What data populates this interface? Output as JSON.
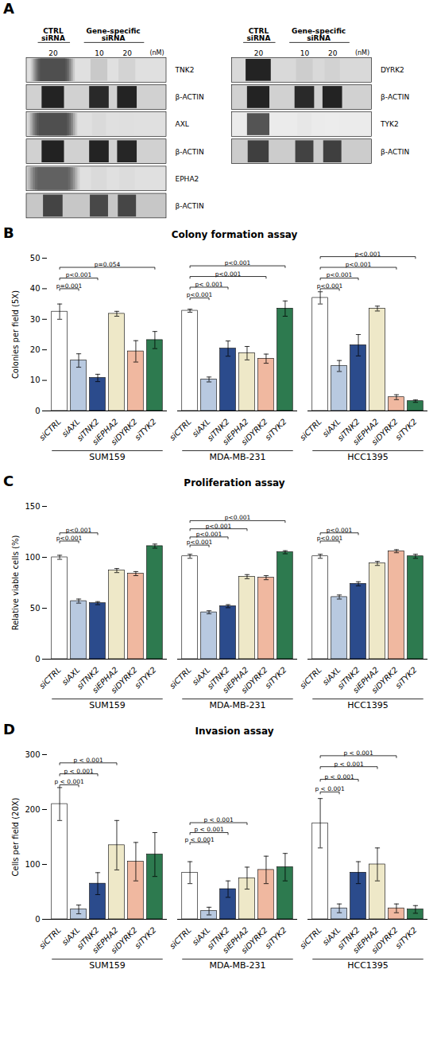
{
  "chart_data": [
    {
      "type": "western_blot",
      "panel": "A",
      "lane_groups": [
        {
          "name": "CTRL\nsiRNA",
          "lanes": 1
        },
        {
          "name": "Gene-specific\nsiRNA",
          "lanes": 2
        }
      ],
      "concentrations": [
        20,
        10,
        20
      ],
      "concentration_unit": "(nM)",
      "membranes": [
        {
          "blots": [
            {
              "label": "TNK2",
              "background": 0.88,
              "bands": [
                {
                  "width": 0.18,
                  "gray": 0.05,
                  "blur": true
                },
                {
                  "width": 0.12,
                  "gray": 0.78,
                  "blur": false
                },
                {
                  "width": 0.12,
                  "gray": 0.82,
                  "blur": false
                }
              ]
            },
            {
              "label": "β-ACTIN",
              "background": 0.82,
              "bands": [
                {
                  "width": 0.16,
                  "gray": 0.08,
                  "blur": false
                },
                {
                  "width": 0.14,
                  "gray": 0.1,
                  "blur": false
                },
                {
                  "width": 0.14,
                  "gray": 0.08,
                  "blur": false
                }
              ]
            },
            {
              "label": "AXL",
              "background": 0.88,
              "bands": [
                {
                  "width": 0.2,
                  "gray": 0.05,
                  "blur": true
                },
                {
                  "width": 0.1,
                  "gray": 0.85,
                  "blur": false
                },
                {
                  "width": 0.1,
                  "gray": 0.87,
                  "blur": false
                }
              ]
            },
            {
              "label": "β-ACTIN",
              "background": 0.82,
              "bands": [
                {
                  "width": 0.16,
                  "gray": 0.07,
                  "blur": false
                },
                {
                  "width": 0.14,
                  "gray": 0.08,
                  "blur": false
                },
                {
                  "width": 0.14,
                  "gray": 0.09,
                  "blur": false
                }
              ]
            },
            {
              "label": "EPHA2",
              "background": 0.88,
              "bands": [
                {
                  "width": 0.22,
                  "gray": 0.12,
                  "blur": true
                },
                {
                  "width": 0.11,
                  "gray": 0.85,
                  "blur": false
                },
                {
                  "width": 0.11,
                  "gray": 0.86,
                  "blur": false
                }
              ]
            },
            {
              "label": "β-ACTIN",
              "background": 0.78,
              "bands": [
                {
                  "width": 0.14,
                  "gray": 0.22,
                  "blur": false
                },
                {
                  "width": 0.13,
                  "gray": 0.24,
                  "blur": false
                },
                {
                  "width": 0.13,
                  "gray": 0.23,
                  "blur": false
                }
              ]
            }
          ]
        },
        {
          "blots": [
            {
              "label": "DYRK2",
              "background": 0.85,
              "bands": [
                {
                  "width": 0.18,
                  "gray": 0.08,
                  "blur": false
                },
                {
                  "width": 0.12,
                  "gray": 0.8,
                  "blur": false
                },
                {
                  "width": 0.11,
                  "gray": 0.82,
                  "blur": false
                }
              ]
            },
            {
              "label": "β-ACTIN",
              "background": 0.82,
              "bands": [
                {
                  "width": 0.16,
                  "gray": 0.08,
                  "blur": false
                },
                {
                  "width": 0.14,
                  "gray": 0.1,
                  "blur": false
                },
                {
                  "width": 0.14,
                  "gray": 0.08,
                  "blur": false
                }
              ]
            },
            {
              "label": "TYK2",
              "background": 0.92,
              "bands": [
                {
                  "width": 0.16,
                  "gray": 0.28,
                  "blur": false
                },
                {
                  "width": 0.1,
                  "gray": 0.9,
                  "blur": false
                },
                {
                  "width": 0.1,
                  "gray": 0.92,
                  "blur": false
                }
              ]
            },
            {
              "label": "β-ACTIN",
              "background": 0.8,
              "bands": [
                {
                  "width": 0.15,
                  "gray": 0.2,
                  "blur": false
                },
                {
                  "width": 0.13,
                  "gray": 0.21,
                  "blur": false
                },
                {
                  "width": 0.13,
                  "gray": 0.2,
                  "blur": false
                }
              ]
            }
          ]
        }
      ]
    },
    {
      "type": "bar",
      "panel": "B",
      "title": "Colony formation assay",
      "ylabel": "Colonies per field (5X)",
      "ylim": [
        0,
        50
      ],
      "yticks": [
        0,
        10,
        20,
        30,
        40,
        50
      ],
      "categories": [
        "siCTRL",
        "siAXL",
        "siTNK2",
        "siEPHA2",
        "siDYRK2",
        "siTYK2"
      ],
      "colors": [
        "white",
        "#b8c9e0",
        "#2b4b8c",
        "#eee8c8",
        "#f0b8a0",
        "#2d7a4f"
      ],
      "groups": [
        {
          "name": "SUM159",
          "values": [
            32.5,
            16.5,
            10.8,
            31.8,
            19.5,
            23.2
          ],
          "errors": [
            2.5,
            2.2,
            1.2,
            0.8,
            3.5,
            2.8
          ],
          "significance": [
            {
              "from": "siCTRL",
              "to": "siAXL",
              "label": "p=0.001",
              "y": 40.0
            },
            {
              "from": "siCTRL",
              "to": "siTNK2",
              "label": "p<0.001",
              "y": 43.5
            },
            {
              "from": "siCTRL",
              "to": "siTYK2",
              "label": "p=0.054",
              "y": 47.0
            }
          ]
        },
        {
          "name": "MDA-MB-231",
          "values": [
            32.8,
            10.3,
            20.4,
            18.9,
            17.1,
            33.5
          ],
          "errors": [
            0.5,
            0.8,
            2.5,
            2.2,
            1.5,
            2.5
          ],
          "significance": [
            {
              "from": "siCTRL",
              "to": "siAXL",
              "label": "p<0.001",
              "y": 37.0
            },
            {
              "from": "siCTRL",
              "to": "siTNK2",
              "label": "p< 0.001",
              "y": 40.5
            },
            {
              "from": "siCTRL",
              "to": "siDYRK2",
              "label": "p<0.001",
              "y": 44.0
            },
            {
              "from": "siCTRL",
              "to": "siTYK2",
              "label": "p<0.001",
              "y": 47.5
            }
          ]
        },
        {
          "name": "HCC1395",
          "values": [
            37.0,
            14.7,
            21.5,
            33.5,
            4.5,
            3.2
          ],
          "errors": [
            2.0,
            1.8,
            3.5,
            0.8,
            0.8,
            0.4
          ],
          "significance": [
            {
              "from": "siCTRL",
              "to": "siAXL",
              "label": "p<0.001",
              "y": 40.0
            },
            {
              "from": "siCTRL",
              "to": "siTNK2",
              "label": "p<0.001",
              "y": 43.5
            },
            {
              "from": "siCTRL",
              "to": "siDYRK2",
              "label": "p<0.001",
              "y": 47.0
            },
            {
              "from": "siCTRL",
              "to": "siTYK2",
              "label": "p<0.001",
              "y": 50.5
            }
          ]
        }
      ]
    },
    {
      "type": "bar",
      "panel": "C",
      "title": "Proliferation assay",
      "ylabel": "Relative viable cells (%)",
      "ylim": [
        0,
        150
      ],
      "yticks": [
        0,
        50,
        100,
        150
      ],
      "categories": [
        "siCTRL",
        "siAXL",
        "siTNK2",
        "siEPHA2",
        "siDYRK2",
        "siTYK2"
      ],
      "colors": [
        "white",
        "#b8c9e0",
        "#2b4b8c",
        "#eee8c8",
        "#f0b8a0",
        "#2d7a4f"
      ],
      "groups": [
        {
          "name": "SUM159",
          "values": [
            100,
            57,
            55,
            87,
            84,
            111
          ],
          "errors": [
            2.0,
            2.0,
            1.5,
            2.0,
            2.0,
            2.0
          ],
          "significance": [
            {
              "from": "siCTRL",
              "to": "siAXL",
              "label": "p<0.001",
              "y": 116
            },
            {
              "from": "siCTRL",
              "to": "siTNK2",
              "label": "p<0.001",
              "y": 124
            }
          ]
        },
        {
          "name": "MDA-MB-231",
          "values": [
            101,
            46,
            52,
            81,
            80,
            105
          ],
          "errors": [
            2.0,
            1.5,
            1.5,
            2.0,
            2.0,
            1.5
          ],
          "significance": [
            {
              "from": "siCTRL",
              "to": "siAXL",
              "label": "p<0.001",
              "y": 112
            },
            {
              "from": "siCTRL",
              "to": "siTNK2",
              "label": "p<0.001",
              "y": 120
            },
            {
              "from": "siCTRL",
              "to": "siEPHA2",
              "label": "p<0.001",
              "y": 128
            },
            {
              "from": "siCTRL",
              "to": "siTYK2",
              "label": "p<0.001",
              "y": 136
            }
          ]
        },
        {
          "name": "HCC1395",
          "values": [
            101,
            61,
            74,
            94,
            106,
            101
          ],
          "errors": [
            2.0,
            2.0,
            2.0,
            2.0,
            1.5,
            2.0
          ],
          "significance": [
            {
              "from": "siCTRL",
              "to": "siAXL",
              "label": "p<0.001",
              "y": 116
            },
            {
              "from": "siCTRL",
              "to": "siTNK2",
              "label": "p<0.001",
              "y": 124
            }
          ]
        }
      ]
    },
    {
      "type": "bar",
      "panel": "D",
      "title": "Invasion assay",
      "ylabel": "Cells per field (20X)",
      "ylim": [
        0,
        300
      ],
      "yticks": [
        0,
        100,
        200,
        300
      ],
      "categories": [
        "siCTRL",
        "siAXL",
        "siTNK2",
        "siEPHA2",
        "siDYRK2",
        "siTYK2"
      ],
      "colors": [
        "white",
        "#b8c9e0",
        "#2b4b8c",
        "#eee8c8",
        "#f0b8a0",
        "#2d7a4f"
      ],
      "groups": [
        {
          "name": "SUM159",
          "values": [
            210,
            18,
            65,
            135,
            105,
            118
          ],
          "errors": [
            30,
            8,
            20,
            45,
            35,
            40
          ],
          "significance": [
            {
              "from": "siCTRL",
              "to": "siAXL",
              "label": "p < 0.001",
              "y": 245
            },
            {
              "from": "siCTRL",
              "to": "siTNK2",
              "label": "p < 0.001",
              "y": 265
            },
            {
              "from": "siCTRL",
              "to": "siEPHA2",
              "label": "p < 0.001",
              "y": 285
            }
          ]
        },
        {
          "name": "MDA-MB-231",
          "values": [
            85,
            15,
            55,
            75,
            90,
            95
          ],
          "errors": [
            20,
            7,
            15,
            20,
            25,
            25
          ],
          "significance": [
            {
              "from": "siCTRL",
              "to": "siAXL",
              "label": "p < 0.001",
              "y": 140
            },
            {
              "from": "siCTRL",
              "to": "siTNK2",
              "label": "p < 0.001",
              "y": 158
            },
            {
              "from": "siCTRL",
              "to": "siEPHA2",
              "label": "p < 0.001",
              "y": 176
            }
          ]
        },
        {
          "name": "HCC1395",
          "values": [
            175,
            20,
            85,
            100,
            20,
            18
          ],
          "errors": [
            45,
            8,
            20,
            30,
            8,
            7
          ],
          "significance": [
            {
              "from": "siCTRL",
              "to": "siAXL",
              "label": "p < 0.001",
              "y": 232
            },
            {
              "from": "siCTRL",
              "to": "siTNK2",
              "label": "p < 0.001",
              "y": 255
            },
            {
              "from": "siCTRL",
              "to": "siEPHA2",
              "label": "p < 0.001",
              "y": 278
            },
            {
              "from": "siCTRL",
              "to": "siDYRK2",
              "label": "p < 0.001",
              "y": 298
            }
          ]
        }
      ]
    }
  ]
}
